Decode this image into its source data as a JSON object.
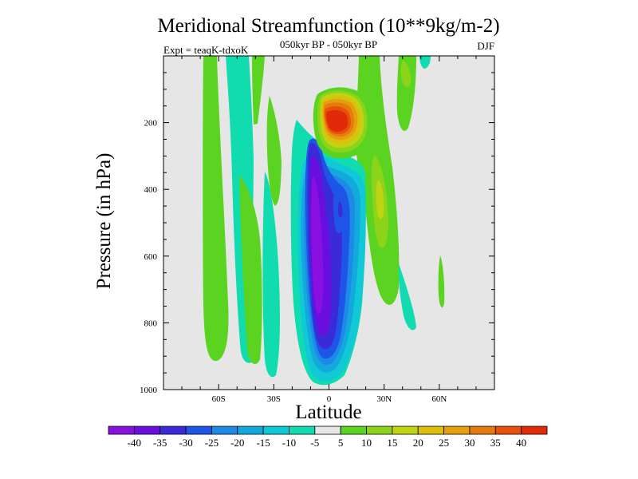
{
  "chart_data": {
    "type": "contour",
    "title": "Meridional Streamfunction (10**9kg/m-2)",
    "subtitle": "050kyr BP - 050kyr BP",
    "left_annotation": "Expt = teaqK-tdxoK",
    "right_annotation": "DJF",
    "xlabel": "Latitude",
    "ylabel": "Pressure (in hPa)",
    "xlim": [
      -90,
      90
    ],
    "ylim": [
      1000,
      0
    ],
    "x_ticks": [
      {
        "value": -60,
        "label": "60S"
      },
      {
        "value": -30,
        "label": "30S"
      },
      {
        "value": 0,
        "label": "0"
      },
      {
        "value": 30,
        "label": "30N"
      },
      {
        "value": 60,
        "label": "60N"
      }
    ],
    "y_ticks": [
      {
        "value": 200,
        "label": "200"
      },
      {
        "value": 400,
        "label": "400"
      },
      {
        "value": 600,
        "label": "600"
      },
      {
        "value": 800,
        "label": "800"
      },
      {
        "value": 1000,
        "label": "1000"
      }
    ],
    "colorbar": {
      "levels": [
        -40,
        -35,
        -30,
        -25,
        -20,
        -15,
        -10,
        -5,
        5,
        10,
        15,
        20,
        25,
        30,
        35,
        40
      ],
      "labels": [
        "-40",
        "-35",
        "-30",
        "-25",
        "-20",
        "-15",
        "-10",
        "-5",
        "5",
        "10",
        "15",
        "20",
        "25",
        "30",
        "35",
        "40"
      ],
      "colors": [
        "#8a10e0",
        "#6a0ee0",
        "#3a2ad8",
        "#1f55e6",
        "#1c8ae6",
        "#14a9dc",
        "#10c8d6",
        "#10dcb0",
        "#e6e6e6",
        "#5ad420",
        "#8cd41c",
        "#c0d414",
        "#dcc00c",
        "#e4a00c",
        "#e67a0c",
        "#e6500a",
        "#e02a08"
      ]
    },
    "features": [
      {
        "name": "tropical negative cell",
        "lat": -5,
        "pressure_range": [
          250,
          980
        ],
        "min_value": -40
      },
      {
        "name": "upper-level positive maximum",
        "lat": 3,
        "pressure_range": [
          130,
          280
        ],
        "max_value": 40
      },
      {
        "name": "southern mid-latitude band",
        "lat": -40,
        "pressure_range": [
          0,
          920
        ],
        "value": 5
      },
      {
        "name": "northern subtropical band",
        "lat": 22,
        "pressure_range": [
          200,
          780
        ],
        "value": 15
      }
    ]
  }
}
